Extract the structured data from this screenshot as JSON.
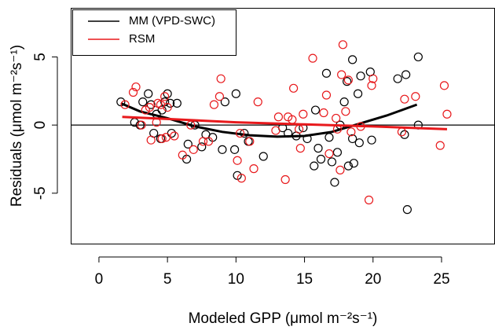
{
  "chart_data": {
    "type": "scatter",
    "xlabel": "Modeled GPP (μmol m⁻²s⁻¹)",
    "ylabel": "Residuals (μmol m⁻²s⁻¹)",
    "xlim": [
      -2.06,
      28.9
    ],
    "ylim": [
      -8.7,
      8.6
    ],
    "xticks": [
      0,
      5,
      10,
      15,
      20,
      25
    ],
    "yticks": [
      -5,
      0,
      5
    ],
    "hline": 0,
    "legend": "top-left",
    "series": [
      {
        "name": "MM (VPD-SWC)",
        "color": "#000000",
        "x": [
          1.6,
          2.6,
          3.0,
          3.2,
          3.6,
          3.8,
          4.0,
          4.2,
          4.5,
          4.6,
          4.8,
          5.0,
          5.2,
          5.3,
          5.7,
          6.4,
          6.5,
          7.0,
          7.5,
          7.8,
          8.3,
          9.0,
          9.2,
          9.9,
          10.0,
          10.1,
          10.6,
          10.9,
          12.0,
          13.4,
          13.8,
          14.4,
          14.9,
          15.2,
          15.7,
          15.8,
          16.0,
          16.2,
          16.6,
          16.8,
          17.0,
          17.2,
          17.4,
          17.6,
          17.9,
          18.1,
          18.2,
          18.5,
          18.5,
          18.6,
          18.9,
          19.0,
          19.1,
          19.8,
          19.9,
          21.8,
          22.3,
          22.4,
          22.5,
          23.3,
          23.3
        ],
        "values": [
          1.7,
          0.2,
          0,
          1.7,
          2.3,
          1.5,
          -0.6,
          0.8,
          -1.0,
          1.1,
          1.7,
          2.3,
          1.6,
          -0.6,
          1.6,
          -2.5,
          -1.4,
          0,
          -1.6,
          -0.7,
          -0.9,
          -1.8,
          1.7,
          -1.8,
          2.3,
          -3.7,
          -0.6,
          -1.2,
          -2.3,
          -0.2,
          -0.6,
          -0.8,
          -0.2,
          -1.0,
          -3.0,
          1.1,
          -1.7,
          -2.5,
          3.8,
          -0.9,
          -2.7,
          -4.2,
          -2.0,
          0,
          1.7,
          3.2,
          -3.0,
          4.8,
          -1.0,
          -2.8,
          2.3,
          -1.3,
          3.6,
          3.9,
          -1.1,
          3.4,
          -0.7,
          3.7,
          -6.2,
          0,
          5.0
        ],
        "fit_x": [
          1.6,
          3,
          5,
          7,
          9,
          11,
          13,
          15,
          17,
          19,
          21,
          23.2
        ],
        "fit_values": [
          1.6,
          1.0,
          0.5,
          -0.1,
          -0.5,
          -0.75,
          -0.85,
          -0.8,
          -0.5,
          0.1,
          0.7,
          1.5
        ]
      },
      {
        "name": "RSM",
        "color": "#e8191c",
        "x": [
          1.9,
          2.5,
          2.7,
          3.1,
          3.4,
          3.7,
          3.8,
          4.2,
          4.3,
          4.5,
          4.6,
          4.8,
          4.9,
          5.0,
          5.5,
          6.1,
          6.7,
          6.9,
          7.6,
          8.0,
          8.4,
          8.8,
          8.9,
          10.1,
          10.3,
          10.4,
          11.0,
          11.3,
          11.6,
          12.9,
          13.1,
          13.6,
          13.8,
          14.1,
          14.2,
          14.6,
          14.7,
          14.9,
          15.6,
          16.4,
          16.6,
          16.8,
          17.3,
          17.4,
          17.6,
          17.7,
          17.8,
          18.0,
          18.2,
          18.4,
          19.1,
          19.7,
          19.9,
          20.0,
          22.1,
          22.3,
          23.1,
          24.9,
          25.2,
          25.4
        ],
        "values": [
          1.5,
          2.4,
          2.8,
          0,
          1.1,
          1.3,
          -1.1,
          0.2,
          1.6,
          1.5,
          -1.0,
          2.1,
          -0.9,
          1.3,
          -0.8,
          -2.2,
          0,
          -1.8,
          -1.2,
          -1.2,
          1.5,
          2.1,
          3.4,
          -2.6,
          -0.6,
          -3.9,
          -1.2,
          -3.2,
          1.7,
          -0.4,
          0.6,
          -4.0,
          0.6,
          0.4,
          2.7,
          -0.3,
          -1.7,
          0.8,
          4.9,
          0.9,
          2.2,
          -2.1,
          0.5,
          -0.3,
          -3.3,
          3.7,
          5.9,
          1.0,
          3.3,
          -0.5,
          -0.1,
          -5.5,
          2.9,
          3.4,
          -0.5,
          1.9,
          2.1,
          -1.5,
          2.9,
          0.8
        ],
        "fit_x": [
          1.7,
          5,
          10,
          15,
          20,
          25.4
        ],
        "fit_values": [
          0.6,
          0.45,
          0.2,
          0.05,
          -0.1,
          -0.3
        ]
      }
    ]
  }
}
